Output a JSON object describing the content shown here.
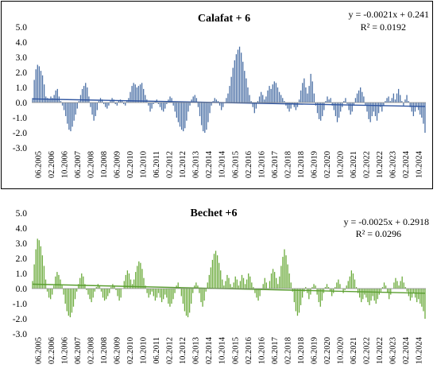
{
  "chart_data": [
    {
      "type": "bar",
      "title": "Calafat + 6",
      "trendline": {
        "equation": "y = -0.0021x + 0.241",
        "r2": "R² = 0.0192"
      },
      "color": "#4a6fa5",
      "trend_color": "#2f55a0",
      "ylim": [
        -3.0,
        5.0
      ],
      "yticks": [
        "-3.0",
        "-2.0",
        "-1.0",
        "0.0",
        "1.0",
        "2.0",
        "3.0",
        "4.0",
        "5.0"
      ],
      "xticks": [
        "06.2005",
        "02.2006",
        "10.2006",
        "06.2007",
        "02.2008",
        "10.2008",
        "06.2009",
        "02.2010",
        "10.2010",
        "06.2011",
        "02.2012",
        "10.2012",
        "06.2013",
        "02.2014",
        "10.2014",
        "06.2015",
        "02.2016",
        "10.2016",
        "06.2017",
        "02.2018",
        "10.2018",
        "06.2019",
        "02.2020",
        "10.2020",
        "06.2021",
        "02.2022",
        "10.2022",
        "06.2023",
        "02.2024",
        "10.2024"
      ],
      "grid": false,
      "values": [
        0.3,
        1.5,
        2.2,
        2.5,
        2.4,
        2.1,
        1.8,
        1.2,
        0.4,
        0.3,
        0.2,
        0.4,
        0.3,
        0.5,
        0.8,
        0.9,
        0.4,
        0.1,
        -0.2,
        -0.5,
        -0.9,
        -1.4,
        -1.8,
        -1.9,
        -1.6,
        -1.2,
        -0.8,
        -0.4,
        0.1,
        0.5,
        0.9,
        1.1,
        1.3,
        1.0,
        0.4,
        -0.3,
        -0.8,
        -1.2,
        -0.9,
        -0.5,
        0.1,
        0.3,
        0.2,
        -0.1,
        -0.3,
        -0.4,
        -0.2,
        0.1,
        0.3,
        0.2,
        -0.1,
        -0.2,
        0.1,
        0.2,
        0.1,
        -0.1,
        -0.2,
        0.1,
        0.3,
        0.7,
        1.1,
        1.3,
        1.2,
        1.0,
        1.1,
        1.2,
        1.3,
        0.9,
        0.5,
        0.2,
        -0.2,
        -0.6,
        -0.4,
        -0.1,
        0.1,
        0.2,
        -0.1,
        -0.3,
        -0.5,
        -0.6,
        -0.4,
        -0.1,
        0.2,
        0.4,
        0.3,
        -0.2,
        -0.6,
        -1.0,
        -1.3,
        -1.6,
        -1.8,
        -1.9,
        -1.7,
        -1.2,
        -0.6,
        -0.2,
        0.2,
        0.4,
        0.5,
        0.3,
        -0.3,
        -0.9,
        -1.5,
        -1.9,
        -2.0,
        -1.8,
        -1.3,
        -0.7,
        -0.2,
        0.1,
        0.3,
        0.2,
        0.1,
        -0.2,
        -0.5,
        -0.3,
        0.0,
        0.3,
        0.6,
        1.1,
        1.7,
        2.3,
        2.8,
        3.2,
        3.5,
        3.7,
        3.3,
        2.7,
        2.1,
        1.6,
        1.0,
        0.5,
        0.1,
        -0.3,
        -0.7,
        -0.4,
        0.1,
        0.4,
        0.7,
        0.5,
        0.2,
        0.4,
        0.8,
        1.1,
        0.9,
        1.2,
        1.4,
        1.3,
        1.0,
        0.7,
        0.5,
        0.3,
        0.1,
        -0.2,
        -0.4,
        -0.6,
        -0.4,
        -0.1,
        -0.3,
        -0.5,
        -0.3,
        0.2,
        0.8,
        1.3,
        1.6,
        1.0,
        0.6,
        1.1,
        1.9,
        1.4,
        0.6,
        -0.2,
        -0.7,
        -1.1,
        -1.2,
        -0.9,
        -0.5,
        0.1,
        0.4,
        0.2,
        0.3,
        -0.2,
        -0.5,
        -0.9,
        -1.3,
        -1.0,
        -0.6,
        -0.3,
        0.1,
        0.3,
        -0.1,
        -0.5,
        -0.8,
        -0.6,
        -0.2,
        0.3,
        0.6,
        0.8,
        1.0,
        0.7,
        0.4,
        -0.2,
        -0.6,
        -1.1,
        -1.3,
        -0.9,
        -0.6,
        -0.9,
        -1.2,
        -0.7,
        -0.3,
        -0.6,
        -0.2,
        0.1,
        0.3,
        0.4,
        0.1,
        0.3,
        0.6,
        0.2,
        0.6,
        0.9,
        0.5,
        0.1,
        -0.2,
        0.2,
        0.5,
        0.1,
        -0.3,
        -0.6,
        -0.9,
        -0.6,
        -0.3,
        -0.5,
        -0.8,
        -1.0,
        -1.4,
        -2.0
      ]
    },
    {
      "type": "bar",
      "title": "Bechet +6",
      "trendline": {
        "equation": "y = -0.0025x + 0.2918",
        "r2": "R² = 0.0296"
      },
      "color": "#6aaa3a",
      "trend_color": "#5a9e30",
      "ylim": [
        -3.0,
        5.0
      ],
      "yticks": [
        "-3.0",
        "-2.0",
        "-1.0",
        "0.0",
        "1.0",
        "2.0",
        "3.0",
        "4.0",
        "5.0"
      ],
      "xticks": [
        "06.2005",
        "02.2006",
        "10.2006",
        "06.2007",
        "02.2008",
        "10.2008",
        "06.2009",
        "02.2010",
        "10.2010",
        "06.2011",
        "02.2012",
        "10.2012",
        "06.2013",
        "02.2014",
        "10.2014",
        "06.2015",
        "02.2016",
        "10.2016",
        "06.2017",
        "02.2018",
        "10.2018",
        "06.2019",
        "02.2020",
        "10.2020",
        "06.2021",
        "02.2022",
        "10.2022",
        "06.2023",
        "02.2024",
        "10.2024"
      ],
      "grid": false,
      "values": [
        0.5,
        1.6,
        2.6,
        3.3,
        3.2,
        2.8,
        2.2,
        1.5,
        0.6,
        -0.2,
        -0.6,
        -0.7,
        -0.4,
        0.2,
        0.8,
        1.1,
        0.9,
        0.6,
        0.2,
        -0.4,
        -1.0,
        -1.5,
        -1.8,
        -1.9,
        -1.6,
        -1.2,
        -0.7,
        -0.2,
        0.3,
        0.7,
        1.0,
        0.8,
        0.3,
        -0.1,
        -0.4,
        -0.7,
        -0.9,
        -0.6,
        -0.2,
        0.1,
        0.3,
        0.2,
        -0.2,
        -0.6,
        -0.8,
        -0.7,
        -0.5,
        -0.3,
        0.1,
        0.3,
        0.2,
        -0.1,
        -0.5,
        -0.8,
        -0.6,
        0.0,
        0.5,
        0.9,
        1.2,
        1.0,
        0.6,
        0.3,
        0.6,
        1.1,
        1.5,
        1.8,
        1.7,
        1.3,
        0.7,
        0.2,
        -0.3,
        -0.6,
        -0.4,
        -0.2,
        -0.5,
        -0.8,
        -0.6,
        -0.3,
        -0.6,
        -0.9,
        -0.7,
        -0.4,
        -0.6,
        -1.0,
        -1.2,
        -1.0,
        -0.7,
        -0.3,
        0.2,
        0.4,
        0.1,
        -0.5,
        -1.0,
        -1.5,
        -1.8,
        -1.9,
        -1.6,
        -1.0,
        -0.3,
        0.2,
        0.4,
        0.2,
        -0.3,
        -0.9,
        -1.2,
        -0.8,
        -0.2,
        0.4,
        0.9,
        1.4,
        1.9,
        2.3,
        2.5,
        2.2,
        1.7,
        1.2,
        0.6,
        0.2,
        0.5,
        0.9,
        0.7,
        0.3,
        0.1,
        0.4,
        0.8,
        0.6,
        0.2,
        0.5,
        0.9,
        0.7,
        0.3,
        0.6,
        1.0,
        0.8,
        0.4,
        0.1,
        -0.3,
        -0.6,
        -0.8,
        -0.5,
        -0.1,
        0.3,
        0.7,
        0.4,
        0.0,
        0.5,
        1.0,
        1.3,
        1.1,
        0.7,
        0.3,
        0.8,
        1.5,
        2.1,
        2.6,
        2.2,
        1.6,
        1.0,
        0.4,
        -0.2,
        -0.9,
        -1.5,
        -1.8,
        -1.6,
        -1.1,
        -0.6,
        -0.2,
        0.1,
        -0.3,
        -0.7,
        -0.4,
        0.1,
        0.3,
        0.2,
        -0.4,
        -0.9,
        -1.2,
        -0.8,
        -0.3,
        0.1,
        0.3,
        0.1,
        -0.2,
        -0.5,
        -0.3,
        0.1,
        0.4,
        0.6,
        0.3,
        0.0,
        -0.3,
        -0.1,
        0.2,
        0.5,
        0.8,
        1.2,
        1.0,
        0.6,
        0.1,
        -0.3,
        -0.6,
        -0.9,
        -0.7,
        -0.4,
        -0.6,
        -0.9,
        -1.1,
        -0.8,
        -0.5,
        -0.8,
        -1.0,
        -0.7,
        -0.4,
        -0.2,
        0.1,
        0.4,
        0.2,
        -0.3,
        -0.7,
        -0.4,
        0.0,
        0.4,
        0.7,
        0.5,
        0.2,
        0.5,
        0.8,
        0.4,
        0.1,
        -0.2,
        -0.5,
        -0.8,
        -0.6,
        -0.3,
        -0.6,
        -0.9,
        -0.7,
        -1.0,
        -1.2,
        -1.5,
        -2.0
      ]
    }
  ]
}
